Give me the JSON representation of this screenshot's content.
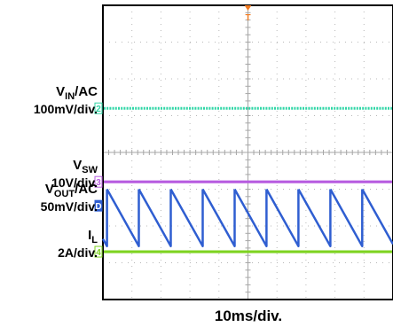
{
  "chart_data": {
    "type": "line",
    "title": "",
    "xlabel": "10ms/div.",
    "timebase_ms_per_div": 10,
    "divisions": {
      "horizontal": 10,
      "vertical": 8
    },
    "grid": true,
    "trigger_marker": "T",
    "channels": [
      {
        "id": "vout",
        "name_main": "V",
        "name_sub": "OUT",
        "name_suffix": "/AC",
        "scale": "50mV/div.",
        "marker": "D",
        "color": "#2f5ed1",
        "waveform": "sawtooth",
        "ramp_period_ms": 11.0,
        "ramp_phase_ms": 1.4,
        "peak_div": 3.0,
        "trough_div": 1.45
      },
      {
        "id": "vin",
        "name_main": "V",
        "name_sub": "IN",
        "name_suffix": "/AC",
        "scale": "100mV/div.",
        "marker": "2",
        "color": "#2fd6a6",
        "waveform": "flat",
        "level_div": 5.2
      },
      {
        "id": "vsw",
        "name_main": "V",
        "name_sub": "SW",
        "name_suffix": "",
        "scale": "10V/div.",
        "marker": "3",
        "color": "#b75ce0",
        "waveform": "flat",
        "level_div": 3.2
      },
      {
        "id": "il",
        "name_main": "I",
        "name_sub": "L",
        "name_suffix": "",
        "scale": "2A/div.",
        "marker": "4",
        "color": "#7ed321",
        "waveform": "flat",
        "level_div": 1.3
      }
    ]
  }
}
